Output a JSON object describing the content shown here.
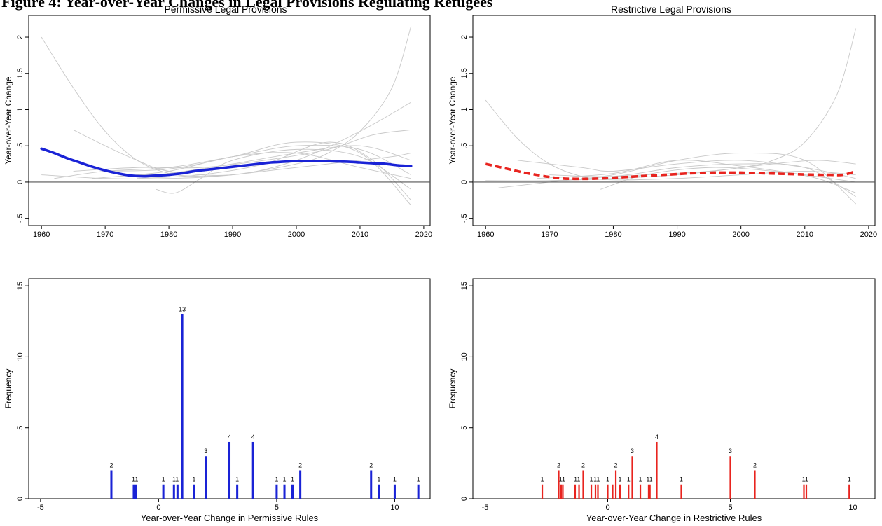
{
  "figure_title": "Figure 4: Year-over-Year Changes in Legal Provisions Regulating Refugees",
  "chart_data": [
    {
      "id": "top-left",
      "type": "line",
      "title": "Permissive Legal Provisions",
      "ylabel": "Year-over-Year Change",
      "xlabel": "",
      "xlim": [
        1958,
        2021
      ],
      "ylim": [
        -0.6,
        2.3
      ],
      "xticks": [
        1960,
        1970,
        1980,
        1990,
        2000,
        2010,
        2020
      ],
      "yticks": [
        {
          "v": -0.5,
          "label": "-.5"
        },
        {
          "v": 0,
          "label": "0"
        },
        {
          "v": 0.5,
          "label": ".5"
        },
        {
          "v": 1,
          "label": "1"
        },
        {
          "v": 1.5,
          "label": "1.5"
        },
        {
          "v": 2,
          "label": "2"
        }
      ],
      "reference_line": 0,
      "main_color": "#1a23d6",
      "main_style": "solid",
      "main_series": {
        "x": [
          1960,
          1962,
          1964,
          1966,
          1968,
          1970,
          1972,
          1974,
          1976,
          1978,
          1980,
          1982,
          1984,
          1986,
          1988,
          1990,
          1992,
          1994,
          1996,
          1998,
          2000,
          2002,
          2004,
          2006,
          2008,
          2010,
          2012,
          2014,
          2016,
          2018
        ],
        "y": [
          0.46,
          0.4,
          0.33,
          0.27,
          0.21,
          0.16,
          0.12,
          0.09,
          0.08,
          0.09,
          0.1,
          0.12,
          0.15,
          0.17,
          0.19,
          0.21,
          0.23,
          0.25,
          0.27,
          0.28,
          0.29,
          0.29,
          0.29,
          0.285,
          0.28,
          0.27,
          0.26,
          0.25,
          0.23,
          0.22
        ]
      },
      "background_series": [
        {
          "x": [
            1960,
            1965,
            1970,
            1975,
            1980,
            1985,
            1990,
            1995,
            2000,
            2005,
            2010,
            2015,
            2018
          ],
          "y": [
            2.0,
            1.3,
            0.7,
            0.3,
            0.12,
            0.08,
            0.1,
            0.15,
            0.2,
            0.25,
            0.3,
            0.35,
            0.4
          ]
        },
        {
          "x": [
            1960,
            1970,
            1980,
            1990,
            2000,
            2005,
            2010,
            2015,
            2018
          ],
          "y": [
            0.1,
            0.05,
            0.05,
            0.1,
            0.25,
            0.4,
            0.7,
            1.3,
            2.15
          ]
        },
        {
          "x": [
            1965,
            1970,
            1975,
            1980,
            1990,
            2000,
            2010,
            2018
          ],
          "y": [
            0.72,
            0.5,
            0.3,
            0.15,
            0.1,
            0.3,
            0.7,
            1.1
          ]
        },
        {
          "x": [
            1962,
            1970,
            1980,
            1990,
            2000,
            2010,
            2018
          ],
          "y": [
            0.05,
            0.15,
            0.2,
            0.35,
            0.5,
            0.45,
            0.1
          ]
        },
        {
          "x": [
            1970,
            1980,
            1990,
            2000,
            2010,
            2018
          ],
          "y": [
            0.15,
            0.18,
            0.35,
            0.55,
            0.4,
            -0.32
          ]
        },
        {
          "x": [
            1975,
            1980,
            1990,
            2000,
            2010,
            2018
          ],
          "y": [
            0.1,
            0.12,
            0.25,
            0.4,
            0.5,
            0.3
          ]
        },
        {
          "x": [
            1978,
            1981,
            1985,
            1990,
            2000,
            2010,
            2018
          ],
          "y": [
            -0.1,
            -0.15,
            0.05,
            0.3,
            0.45,
            0.35,
            -0.1
          ]
        },
        {
          "x": [
            1965,
            1975,
            1985,
            1995,
            2005,
            2012,
            2018
          ],
          "y": [
            0.15,
            0.2,
            0.2,
            0.3,
            0.45,
            0.65,
            0.72
          ]
        },
        {
          "x": [
            1975,
            1985,
            1995,
            2005,
            2012,
            2018
          ],
          "y": [
            0.05,
            0.1,
            0.25,
            0.55,
            0.3,
            -0.25
          ]
        },
        {
          "x": [
            1968,
            1980,
            1990,
            2000,
            2010,
            2018
          ],
          "y": [
            0.05,
            0.15,
            0.35,
            0.4,
            0.2,
            0.05
          ]
        }
      ]
    },
    {
      "id": "top-right",
      "type": "line",
      "title": "Restrictive Legal Provisions",
      "ylabel": "Year-over-Year Change",
      "xlabel": "",
      "xlim": [
        1958,
        2021
      ],
      "ylim": [
        -0.6,
        2.3
      ],
      "xticks": [
        1960,
        1970,
        1980,
        1990,
        2000,
        2010,
        2020
      ],
      "yticks": [
        {
          "v": -0.5,
          "label": "-.5"
        },
        {
          "v": 0,
          "label": "0"
        },
        {
          "v": 0.5,
          "label": ".5"
        },
        {
          "v": 1,
          "label": "1"
        },
        {
          "v": 1.5,
          "label": "1.5"
        },
        {
          "v": 2,
          "label": "2"
        }
      ],
      "reference_line": 0,
      "main_color": "#e8241f",
      "main_style": "dashed",
      "main_series": {
        "x": [
          1960,
          1962,
          1964,
          1966,
          1968,
          1970,
          1972,
          1974,
          1976,
          1978,
          1980,
          1982,
          1984,
          1986,
          1988,
          1990,
          1992,
          1994,
          1996,
          1998,
          2000,
          2002,
          2004,
          2006,
          2008,
          2010,
          2012,
          2014,
          2016,
          2018
        ],
        "y": [
          0.25,
          0.21,
          0.17,
          0.13,
          0.1,
          0.07,
          0.05,
          0.045,
          0.045,
          0.05,
          0.06,
          0.07,
          0.08,
          0.09,
          0.1,
          0.11,
          0.12,
          0.125,
          0.13,
          0.13,
          0.13,
          0.125,
          0.12,
          0.115,
          0.11,
          0.105,
          0.1,
          0.1,
          0.1,
          0.15
        ]
      },
      "background_series": [
        {
          "x": [
            1960,
            1965,
            1970,
            1975,
            1980,
            1990,
            2000,
            2010,
            2018
          ],
          "y": [
            1.13,
            0.6,
            0.25,
            0.08,
            0.03,
            0.05,
            0.1,
            0.15,
            0.1
          ]
        },
        {
          "x": [
            1960,
            1970,
            1980,
            1990,
            2000,
            2005,
            2010,
            2015,
            2018
          ],
          "y": [
            0.02,
            0.02,
            0.05,
            0.1,
            0.2,
            0.3,
            0.55,
            1.2,
            2.12
          ]
        },
        {
          "x": [
            1962,
            1970,
            1980,
            1990,
            2000,
            2010,
            2018
          ],
          "y": [
            -0.08,
            0.0,
            0.1,
            0.3,
            0.4,
            0.3,
            -0.3
          ]
        },
        {
          "x": [
            1965,
            1975,
            1980,
            1990,
            2000,
            2010,
            2018
          ],
          "y": [
            0.3,
            0.2,
            0.15,
            0.25,
            0.3,
            0.2,
            0.05
          ]
        },
        {
          "x": [
            1970,
            1980,
            1990,
            2000,
            2010,
            2018
          ],
          "y": [
            0.1,
            0.08,
            0.2,
            0.25,
            0.2,
            -0.2
          ]
        },
        {
          "x": [
            1975,
            1985,
            1995,
            2005,
            2012,
            2018
          ],
          "y": [
            0.05,
            0.1,
            0.15,
            0.25,
            0.3,
            0.25
          ]
        },
        {
          "x": [
            1978,
            1985,
            1995,
            2005,
            2012,
            2018
          ],
          "y": [
            -0.1,
            0.1,
            0.2,
            0.15,
            0.05,
            -0.15
          ]
        },
        {
          "x": [
            1968,
            1980,
            1990,
            2000,
            2010,
            2018
          ],
          "y": [
            0.05,
            0.12,
            0.3,
            0.22,
            0.1,
            0.0
          ]
        }
      ]
    },
    {
      "id": "bottom-left",
      "type": "bar",
      "title": "",
      "ylabel": "Frequency",
      "xlabel": "Year-over-Year Change in Permissive Rules",
      "xlim": [
        -5.5,
        11.5
      ],
      "ylim": [
        0,
        15.5
      ],
      "xticks": [
        -5,
        0,
        5,
        10
      ],
      "yticks": [
        {
          "v": 0,
          "label": "0"
        },
        {
          "v": 5,
          "label": "5"
        },
        {
          "v": 10,
          "label": "10"
        },
        {
          "v": 15,
          "label": "15"
        }
      ],
      "bar_color": "#1a23d6",
      "bar_width": 0.09,
      "bars": [
        {
          "x": -2.0,
          "y": 2
        },
        {
          "x": -1.05,
          "y": 1
        },
        {
          "x": -0.95,
          "y": 1
        },
        {
          "x": 0.2,
          "y": 1
        },
        {
          "x": 0.65,
          "y": 1
        },
        {
          "x": 0.8,
          "y": 1
        },
        {
          "x": 1.0,
          "y": 13
        },
        {
          "x": 1.5,
          "y": 1
        },
        {
          "x": 2.0,
          "y": 3
        },
        {
          "x": 3.0,
          "y": 4
        },
        {
          "x": 3.33,
          "y": 1
        },
        {
          "x": 4.0,
          "y": 4
        },
        {
          "x": 5.0,
          "y": 1
        },
        {
          "x": 5.33,
          "y": 1
        },
        {
          "x": 5.67,
          "y": 1
        },
        {
          "x": 6.0,
          "y": 2
        },
        {
          "x": 9.0,
          "y": 2
        },
        {
          "x": 9.33,
          "y": 1
        },
        {
          "x": 10.0,
          "y": 1
        },
        {
          "x": 11.0,
          "y": 1
        }
      ],
      "data_labels": [
        {
          "x": -2.0,
          "y": 2,
          "text": "2"
        },
        {
          "x": -1.0,
          "y": 1,
          "text": "11"
        },
        {
          "x": 0.2,
          "y": 1,
          "text": "1"
        },
        {
          "x": 0.72,
          "y": 1,
          "text": "11"
        },
        {
          "x": 1.0,
          "y": 13,
          "text": "13"
        },
        {
          "x": 1.5,
          "y": 1,
          "text": "1"
        },
        {
          "x": 2.0,
          "y": 3,
          "text": "3"
        },
        {
          "x": 3.0,
          "y": 4,
          "text": "4"
        },
        {
          "x": 3.33,
          "y": 1,
          "text": "1"
        },
        {
          "x": 4.0,
          "y": 4,
          "text": "4"
        },
        {
          "x": 5.0,
          "y": 1,
          "text": "1"
        },
        {
          "x": 5.33,
          "y": 1,
          "text": "1"
        },
        {
          "x": 5.67,
          "y": 1,
          "text": "1"
        },
        {
          "x": 6.0,
          "y": 2,
          "text": "2"
        },
        {
          "x": 9.0,
          "y": 2,
          "text": "2"
        },
        {
          "x": 9.33,
          "y": 1,
          "text": "1"
        },
        {
          "x": 10.0,
          "y": 1,
          "text": "1"
        },
        {
          "x": 11.0,
          "y": 1,
          "text": "1"
        }
      ]
    },
    {
      "id": "bottom-right",
      "type": "bar",
      "title": "",
      "ylabel": "Frequency",
      "xlabel": "Year-over-Year Change in Restrictive Rules",
      "xlim": [
        -5.5,
        10.9
      ],
      "ylim": [
        0,
        15.5
      ],
      "xticks": [
        -5,
        0,
        5,
        10
      ],
      "yticks": [
        {
          "v": 0,
          "label": "0"
        },
        {
          "v": 5,
          "label": "5"
        },
        {
          "v": 10,
          "label": "10"
        },
        {
          "v": 15,
          "label": "15"
        }
      ],
      "bar_color": "#e8241f",
      "bar_width": 0.045,
      "bars": [
        {
          "x": -2.67,
          "y": 1
        },
        {
          "x": -2.0,
          "y": 2
        },
        {
          "x": -1.9,
          "y": 1
        },
        {
          "x": -1.83,
          "y": 1
        },
        {
          "x": -1.33,
          "y": 1
        },
        {
          "x": -1.17,
          "y": 1
        },
        {
          "x": -1.0,
          "y": 2
        },
        {
          "x": -0.67,
          "y": 1
        },
        {
          "x": -0.5,
          "y": 1
        },
        {
          "x": -0.4,
          "y": 1
        },
        {
          "x": 0.0,
          "y": 1
        },
        {
          "x": 0.2,
          "y": 1
        },
        {
          "x": 0.33,
          "y": 2
        },
        {
          "x": 0.5,
          "y": 1
        },
        {
          "x": 0.85,
          "y": 1
        },
        {
          "x": 1.0,
          "y": 3
        },
        {
          "x": 1.33,
          "y": 1
        },
        {
          "x": 1.67,
          "y": 1
        },
        {
          "x": 1.72,
          "y": 1
        },
        {
          "x": 2.0,
          "y": 4
        },
        {
          "x": 3.0,
          "y": 1
        },
        {
          "x": 5.0,
          "y": 3
        },
        {
          "x": 6.0,
          "y": 2
        },
        {
          "x": 8.0,
          "y": 1
        },
        {
          "x": 8.1,
          "y": 1
        },
        {
          "x": 9.85,
          "y": 1
        }
      ],
      "data_labels": [
        {
          "x": -2.67,
          "y": 1,
          "text": "1"
        },
        {
          "x": -2.0,
          "y": 2,
          "text": "2"
        },
        {
          "x": -1.86,
          "y": 1,
          "text": "11"
        },
        {
          "x": -1.25,
          "y": 1,
          "text": "11"
        },
        {
          "x": -1.0,
          "y": 2,
          "text": "2"
        },
        {
          "x": -0.67,
          "y": 1,
          "text": "1"
        },
        {
          "x": -0.45,
          "y": 1,
          "text": "11"
        },
        {
          "x": 0.0,
          "y": 1,
          "text": "1"
        },
        {
          "x": 0.33,
          "y": 2,
          "text": "2"
        },
        {
          "x": 0.5,
          "y": 1,
          "text": "1"
        },
        {
          "x": 0.85,
          "y": 1,
          "text": "1"
        },
        {
          "x": 1.0,
          "y": 3,
          "text": "3"
        },
        {
          "x": 1.33,
          "y": 1,
          "text": "1"
        },
        {
          "x": 1.7,
          "y": 1,
          "text": "11"
        },
        {
          "x": 2.0,
          "y": 4,
          "text": "4"
        },
        {
          "x": 3.0,
          "y": 1,
          "text": "1"
        },
        {
          "x": 5.0,
          "y": 3,
          "text": "3"
        },
        {
          "x": 6.0,
          "y": 2,
          "text": "2"
        },
        {
          "x": 8.05,
          "y": 1,
          "text": "11"
        },
        {
          "x": 9.85,
          "y": 1,
          "text": "1"
        }
      ]
    }
  ]
}
